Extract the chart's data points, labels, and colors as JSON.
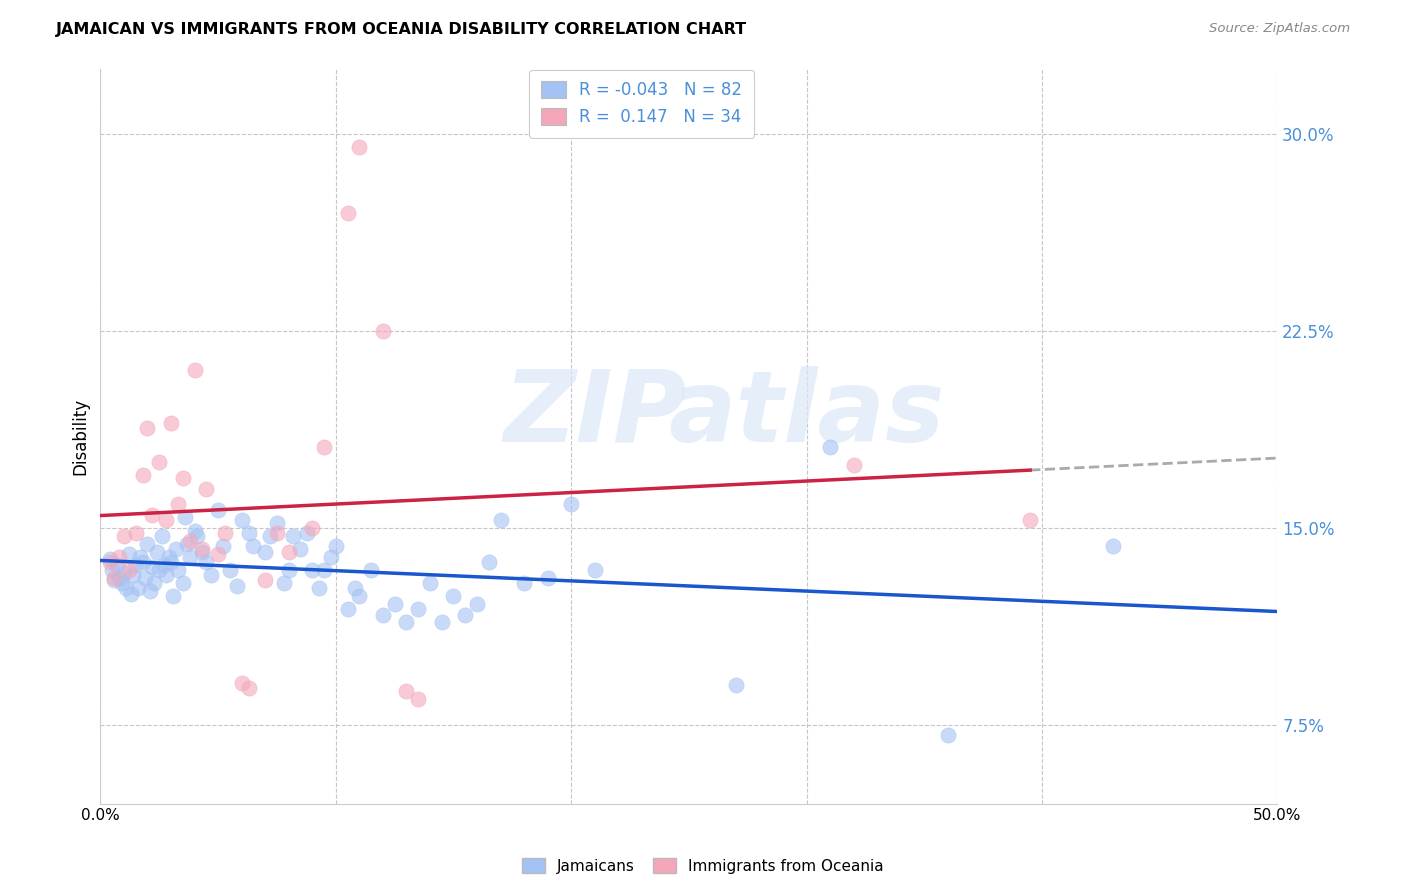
{
  "title": "JAMAICAN VS IMMIGRANTS FROM OCEANIA DISABILITY CORRELATION CHART",
  "source": "Source: ZipAtlas.com",
  "ylabel": "Disability",
  "xlim": [
    0.0,
    0.5
  ],
  "ylim": [
    0.045,
    0.325
  ],
  "yticks": [
    0.075,
    0.15,
    0.225,
    0.3
  ],
  "ytick_labels": [
    "7.5%",
    "15.0%",
    "22.5%",
    "30.0%"
  ],
  "xticks": [
    0.0,
    0.1,
    0.2,
    0.3,
    0.4,
    0.5
  ],
  "xtick_labels": [
    "0.0%",
    "",
    "",
    "",
    "",
    "50.0%"
  ],
  "blue_color": "#a4c2f4",
  "pink_color": "#f4a7b9",
  "line_blue": "#1a56cc",
  "line_pink": "#cc2244",
  "line_gray": "#aaaaaa",
  "jamaicans": [
    [
      0.004,
      0.138
    ],
    [
      0.005,
      0.134
    ],
    [
      0.006,
      0.13
    ],
    [
      0.007,
      0.136
    ],
    [
      0.008,
      0.131
    ],
    [
      0.009,
      0.129
    ],
    [
      0.01,
      0.133
    ],
    [
      0.011,
      0.127
    ],
    [
      0.012,
      0.14
    ],
    [
      0.013,
      0.125
    ],
    [
      0.014,
      0.132
    ],
    [
      0.015,
      0.136
    ],
    [
      0.016,
      0.127
    ],
    [
      0.017,
      0.139
    ],
    [
      0.018,
      0.137
    ],
    [
      0.019,
      0.131
    ],
    [
      0.02,
      0.144
    ],
    [
      0.021,
      0.126
    ],
    [
      0.022,
      0.135
    ],
    [
      0.023,
      0.129
    ],
    [
      0.024,
      0.141
    ],
    [
      0.025,
      0.134
    ],
    [
      0.026,
      0.147
    ],
    [
      0.027,
      0.136
    ],
    [
      0.028,
      0.132
    ],
    [
      0.029,
      0.139
    ],
    [
      0.03,
      0.137
    ],
    [
      0.031,
      0.124
    ],
    [
      0.032,
      0.142
    ],
    [
      0.033,
      0.134
    ],
    [
      0.035,
      0.129
    ],
    [
      0.036,
      0.154
    ],
    [
      0.037,
      0.144
    ],
    [
      0.038,
      0.139
    ],
    [
      0.04,
      0.149
    ],
    [
      0.041,
      0.147
    ],
    [
      0.043,
      0.141
    ],
    [
      0.045,
      0.137
    ],
    [
      0.047,
      0.132
    ],
    [
      0.05,
      0.157
    ],
    [
      0.052,
      0.143
    ],
    [
      0.055,
      0.134
    ],
    [
      0.058,
      0.128
    ],
    [
      0.06,
      0.153
    ],
    [
      0.063,
      0.148
    ],
    [
      0.065,
      0.143
    ],
    [
      0.07,
      0.141
    ],
    [
      0.072,
      0.147
    ],
    [
      0.075,
      0.152
    ],
    [
      0.078,
      0.129
    ],
    [
      0.08,
      0.134
    ],
    [
      0.082,
      0.147
    ],
    [
      0.085,
      0.142
    ],
    [
      0.088,
      0.148
    ],
    [
      0.09,
      0.134
    ],
    [
      0.093,
      0.127
    ],
    [
      0.095,
      0.134
    ],
    [
      0.098,
      0.139
    ],
    [
      0.1,
      0.143
    ],
    [
      0.105,
      0.119
    ],
    [
      0.108,
      0.127
    ],
    [
      0.11,
      0.124
    ],
    [
      0.115,
      0.134
    ],
    [
      0.12,
      0.117
    ],
    [
      0.125,
      0.121
    ],
    [
      0.13,
      0.114
    ],
    [
      0.135,
      0.119
    ],
    [
      0.14,
      0.129
    ],
    [
      0.145,
      0.114
    ],
    [
      0.15,
      0.124
    ],
    [
      0.155,
      0.117
    ],
    [
      0.16,
      0.121
    ],
    [
      0.165,
      0.137
    ],
    [
      0.17,
      0.153
    ],
    [
      0.18,
      0.129
    ],
    [
      0.19,
      0.131
    ],
    [
      0.2,
      0.159
    ],
    [
      0.21,
      0.134
    ],
    [
      0.27,
      0.09
    ],
    [
      0.31,
      0.181
    ],
    [
      0.36,
      0.071
    ],
    [
      0.43,
      0.143
    ]
  ],
  "oceania": [
    [
      0.004,
      0.137
    ],
    [
      0.006,
      0.131
    ],
    [
      0.008,
      0.139
    ],
    [
      0.01,
      0.147
    ],
    [
      0.012,
      0.134
    ],
    [
      0.015,
      0.148
    ],
    [
      0.018,
      0.17
    ],
    [
      0.02,
      0.188
    ],
    [
      0.022,
      0.155
    ],
    [
      0.025,
      0.175
    ],
    [
      0.028,
      0.153
    ],
    [
      0.03,
      0.19
    ],
    [
      0.033,
      0.159
    ],
    [
      0.035,
      0.169
    ],
    [
      0.038,
      0.145
    ],
    [
      0.04,
      0.21
    ],
    [
      0.043,
      0.142
    ],
    [
      0.045,
      0.165
    ],
    [
      0.05,
      0.14
    ],
    [
      0.053,
      0.148
    ],
    [
      0.06,
      0.091
    ],
    [
      0.063,
      0.089
    ],
    [
      0.07,
      0.13
    ],
    [
      0.075,
      0.148
    ],
    [
      0.08,
      0.141
    ],
    [
      0.09,
      0.15
    ],
    [
      0.095,
      0.181
    ],
    [
      0.105,
      0.27
    ],
    [
      0.12,
      0.225
    ],
    [
      0.13,
      0.088
    ],
    [
      0.135,
      0.085
    ],
    [
      0.32,
      0.174
    ],
    [
      0.395,
      0.153
    ]
  ],
  "oceania_highlight": [
    [
      0.11,
      0.295
    ]
  ]
}
